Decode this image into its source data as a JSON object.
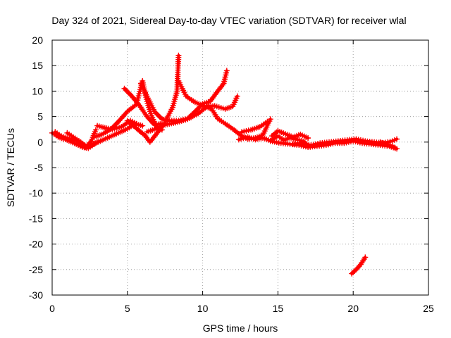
{
  "chart_data": {
    "type": "scatter",
    "title": "Day 324 of 2021, Sidereal Day-to-day VTEC variation (SDTVAR) for receiver wlal",
    "xlabel": "GPS time / hours",
    "ylabel": "SDTVAR / TECUs",
    "xlim": [
      0,
      25
    ],
    "ylim": [
      -30,
      20
    ],
    "xticks": [
      0,
      5,
      10,
      15,
      20,
      25
    ],
    "yticks": [
      -30,
      -25,
      -20,
      -15,
      -10,
      -5,
      0,
      5,
      10,
      15,
      20
    ],
    "grid": true,
    "marker": "plus",
    "color": "#ff0000",
    "series": [
      {
        "name": "arc-1",
        "points": [
          [
            0.0,
            1.8
          ],
          [
            0.4,
            1.0
          ],
          [
            1.0,
            0.4
          ],
          [
            1.6,
            -0.4
          ],
          [
            2.0,
            -1.0
          ],
          [
            2.4,
            -1.2
          ],
          [
            2.8,
            -0.4
          ]
        ]
      },
      {
        "name": "arc-2",
        "points": [
          [
            0.2,
            2.0
          ],
          [
            0.6,
            1.2
          ],
          [
            1.0,
            0.8
          ],
          [
            1.6,
            0.3
          ],
          [
            2.2,
            -1.0
          ],
          [
            2.6,
            -0.6
          ],
          [
            3.0,
            0.0
          ]
        ]
      },
      {
        "name": "arc-3",
        "points": [
          [
            1.0,
            1.8
          ],
          [
            1.4,
            1.0
          ],
          [
            1.9,
            0.0
          ],
          [
            2.3,
            -0.8
          ],
          [
            2.6,
            0.2
          ],
          [
            2.9,
            2.4
          ]
        ]
      },
      {
        "name": "arc-4",
        "points": [
          [
            2.6,
            -0.6
          ],
          [
            3.2,
            0.2
          ],
          [
            3.8,
            1.0
          ],
          [
            4.4,
            1.8
          ],
          [
            5.0,
            2.6
          ],
          [
            5.5,
            3.6
          ],
          [
            6.0,
            3.2
          ]
        ]
      },
      {
        "name": "arc-5",
        "points": [
          [
            3.0,
            3.2
          ],
          [
            3.5,
            2.8
          ],
          [
            4.0,
            2.5
          ],
          [
            4.6,
            3.0
          ],
          [
            5.2,
            4.2
          ],
          [
            5.6,
            3.6
          ]
        ]
      },
      {
        "name": "arc-6",
        "points": [
          [
            2.8,
            1.0
          ],
          [
            3.3,
            1.5
          ],
          [
            3.9,
            2.5
          ],
          [
            4.4,
            4.0
          ],
          [
            5.0,
            6.0
          ],
          [
            5.6,
            7.4
          ],
          [
            6.0,
            12.0
          ],
          [
            6.3,
            8.0
          ],
          [
            6.6,
            5.2
          ],
          [
            7.0,
            2.5
          ],
          [
            7.3,
            2.4
          ]
        ]
      },
      {
        "name": "arc-7",
        "points": [
          [
            4.8,
            10.5
          ],
          [
            5.3,
            9.0
          ],
          [
            5.8,
            7.2
          ],
          [
            6.3,
            5.0
          ],
          [
            6.8,
            3.4
          ],
          [
            7.3,
            3.6
          ]
        ]
      },
      {
        "name": "arc-8",
        "points": [
          [
            5.0,
            4.2
          ],
          [
            5.4,
            3.2
          ],
          [
            5.8,
            2.2
          ],
          [
            6.2,
            1.2
          ],
          [
            6.5,
            0.0
          ],
          [
            6.9,
            1.5
          ],
          [
            7.4,
            3.4
          ],
          [
            8.0,
            6.8
          ],
          [
            8.3,
            10.0
          ],
          [
            8.4,
            17.0
          ]
        ]
      },
      {
        "name": "arc-9",
        "points": [
          [
            5.9,
            11.5
          ],
          [
            6.3,
            9.0
          ],
          [
            6.8,
            6.0
          ],
          [
            7.3,
            4.5
          ],
          [
            7.8,
            4.2
          ],
          [
            8.4,
            4.2
          ],
          [
            9.0,
            4.6
          ],
          [
            9.5,
            6.0
          ],
          [
            10.0,
            7.5
          ],
          [
            10.5,
            8.0
          ],
          [
            11.0,
            10.0
          ],
          [
            11.4,
            11.5
          ],
          [
            11.6,
            14.0
          ]
        ]
      },
      {
        "name": "arc-10",
        "points": [
          [
            6.3,
            2.0
          ],
          [
            6.9,
            2.6
          ],
          [
            7.5,
            3.4
          ],
          [
            8.2,
            3.8
          ],
          [
            9.0,
            4.5
          ],
          [
            9.7,
            5.6
          ],
          [
            10.3,
            7.0
          ],
          [
            10.8,
            7.1
          ],
          [
            11.5,
            6.5
          ],
          [
            12.0,
            7.0
          ],
          [
            12.3,
            9.0
          ]
        ]
      },
      {
        "name": "arc-11",
        "points": [
          [
            8.4,
            12.0
          ],
          [
            8.9,
            9.0
          ],
          [
            9.5,
            7.8
          ],
          [
            10.0,
            7.2
          ],
          [
            10.6,
            6.5
          ],
          [
            11.0,
            4.6
          ],
          [
            11.5,
            3.6
          ],
          [
            12.0,
            2.6
          ],
          [
            12.5,
            1.4
          ],
          [
            13.0,
            0.6
          ],
          [
            13.5,
            0.8
          ],
          [
            14.0,
            1.4
          ],
          [
            14.5,
            4.5
          ]
        ]
      },
      {
        "name": "arc-12",
        "points": [
          [
            12.6,
            2.0
          ],
          [
            13.2,
            2.4
          ],
          [
            13.8,
            3.0
          ],
          [
            14.3,
            4.0
          ]
        ]
      },
      {
        "name": "arc-13",
        "points": [
          [
            12.4,
            0.5
          ],
          [
            13.0,
            1.0
          ],
          [
            13.5,
            0.5
          ],
          [
            14.0,
            0.8
          ],
          [
            14.5,
            0.3
          ],
          [
            15.0,
            1.2
          ],
          [
            15.4,
            0.4
          ],
          [
            15.8,
            0.8
          ],
          [
            16.3,
            0.5
          ],
          [
            16.8,
            0.0
          ]
        ]
      },
      {
        "name": "arc-14",
        "points": [
          [
            14.6,
            1.2
          ],
          [
            15.0,
            2.2
          ],
          [
            15.5,
            1.6
          ],
          [
            16.0,
            1.0
          ],
          [
            16.5,
            1.5
          ],
          [
            17.0,
            0.8
          ]
        ]
      },
      {
        "name": "arc-15",
        "points": [
          [
            14.5,
            0.2
          ],
          [
            15.2,
            -0.2
          ],
          [
            15.8,
            -0.4
          ],
          [
            16.4,
            -0.6
          ],
          [
            17.0,
            -1.0
          ],
          [
            17.6,
            -0.8
          ],
          [
            18.2,
            -0.6
          ],
          [
            18.8,
            -0.2
          ],
          [
            19.4,
            -0.2
          ],
          [
            20.0,
            0.2
          ],
          [
            20.6,
            -0.2
          ],
          [
            21.2,
            -0.4
          ],
          [
            21.8,
            -0.6
          ],
          [
            22.4,
            -0.8
          ],
          [
            22.8,
            -1.2
          ]
        ]
      },
      {
        "name": "arc-16",
        "points": [
          [
            16.0,
            -0.4
          ],
          [
            16.6,
            -0.2
          ],
          [
            17.2,
            -0.6
          ],
          [
            17.8,
            -0.2
          ],
          [
            18.4,
            0.0
          ],
          [
            19.0,
            0.2
          ],
          [
            19.6,
            0.4
          ],
          [
            20.2,
            0.6
          ],
          [
            20.8,
            0.2
          ],
          [
            21.4,
            0.0
          ],
          [
            22.0,
            -0.2
          ],
          [
            22.6,
            0.2
          ],
          [
            22.9,
            0.6
          ]
        ]
      },
      {
        "name": "arc-17",
        "points": [
          [
            21.8,
            0.0
          ],
          [
            22.2,
            -0.4
          ],
          [
            22.6,
            -0.8
          ],
          [
            22.9,
            -1.3
          ]
        ]
      },
      {
        "name": "arc-18",
        "points": [
          [
            19.9,
            -25.8
          ],
          [
            20.2,
            -25.0
          ],
          [
            20.5,
            -24.0
          ],
          [
            20.8,
            -22.6
          ]
        ]
      }
    ]
  }
}
